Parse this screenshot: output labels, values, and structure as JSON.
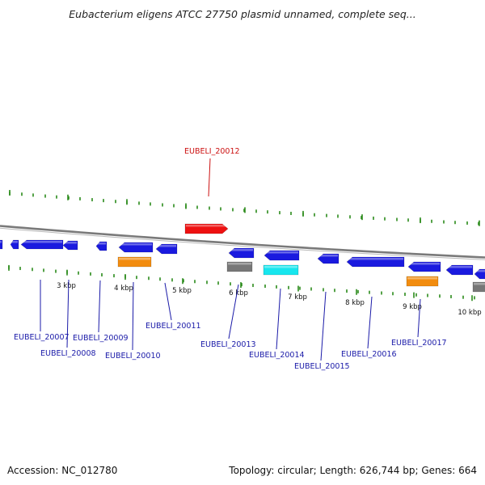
{
  "title": "Eubacterium eligens ATCC 27750 plasmid unnamed, complete seq...",
  "footer": {
    "accession": "Accession: NC_012780",
    "summary": "Topology: circular; Length: 626,744 bp; Genes: 664"
  },
  "colors": {
    "gene_blue": "#1a1adf",
    "gene_orange": "#f28c0f",
    "gene_cyan": "#17e6ee",
    "gene_gray": "#777777",
    "gene_red": "#ee1111",
    "label_blue": "#1a1aa8",
    "label_red": "#cc1111",
    "tick_green": "#2a8a1a",
    "backbone": "#7a7a7a"
  },
  "scale_labels": [
    "3 kbp",
    "4 kbp",
    "5 kbp",
    "6 kbp",
    "7 kbp",
    "8 kbp",
    "9 kbp",
    "10 kbp"
  ],
  "gene_labels": [
    {
      "id": "EUBELI_20007",
      "text": "EUBELI_20007",
      "color": "blue"
    },
    {
      "id": "EUBELI_20008",
      "text": "EUBELI_20008",
      "color": "blue"
    },
    {
      "id": "EUBELI_20009",
      "text": "EUBELI_20009",
      "color": "blue"
    },
    {
      "id": "EUBELI_20010",
      "text": "EUBELI_20010",
      "color": "blue"
    },
    {
      "id": "EUBELI_20011",
      "text": "EUBELI_20011",
      "color": "blue"
    },
    {
      "id": "EUBELI_20012",
      "text": "EUBELI_20012",
      "color": "red"
    },
    {
      "id": "EUBELI_20013",
      "text": "EUBELI_20013",
      "color": "blue"
    },
    {
      "id": "EUBELI_20014",
      "text": "EUBELI_20014",
      "color": "blue"
    },
    {
      "id": "EUBELI_20015",
      "text": "EUBELI_20015",
      "color": "blue"
    },
    {
      "id": "EUBELI_20016",
      "text": "EUBELI_20016",
      "color": "blue"
    },
    {
      "id": "EUBELI_20017",
      "text": "EUBELI_20017",
      "color": "blue"
    }
  ]
}
